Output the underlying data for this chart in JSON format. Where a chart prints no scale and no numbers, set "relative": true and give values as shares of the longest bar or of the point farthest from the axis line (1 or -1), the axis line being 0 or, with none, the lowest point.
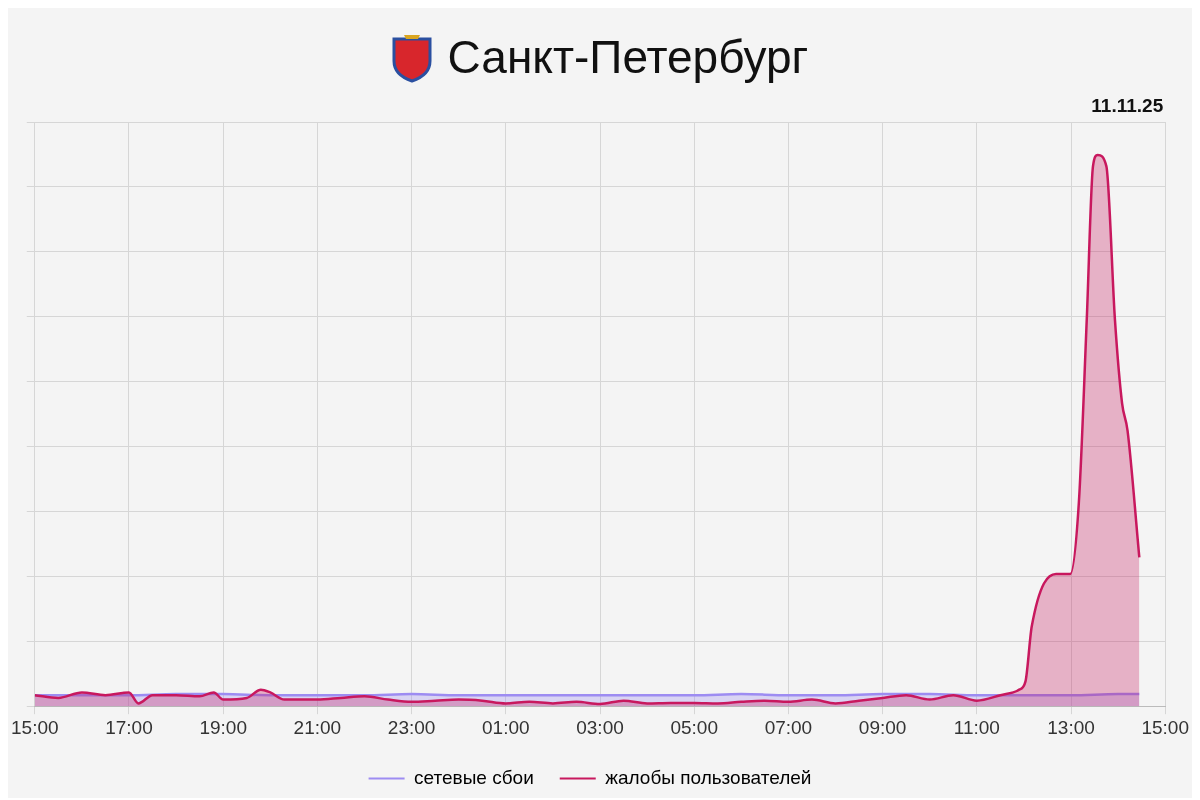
{
  "chart_data": {
    "type": "area",
    "title": "Санкт-Петербург",
    "annotations": [
      "11.11.25"
    ],
    "relative": true,
    "grid": true,
    "legend": "bottom",
    "marker": "none",
    "line_style": "solid",
    "xlim": [
      "--11-10T15:00",
      "--11-11T15:00"
    ],
    "xticks": [
      {
        "value": "--11-10T15:00",
        "label": "15:00"
      },
      {
        "value": "--11-10T17:00",
        "label": "17:00"
      },
      {
        "value": "--11-10T19:00",
        "label": "19:00"
      },
      {
        "value": "--11-10T21:00",
        "label": "21:00"
      },
      {
        "value": "--11-10T23:00",
        "label": "23:00"
      },
      {
        "value": "--11-11T01:00",
        "label": "01:00"
      },
      {
        "value": "--11-11T03:00",
        "label": "03:00"
      },
      {
        "value": "--11-11T05:00",
        "label": "05:00"
      },
      {
        "value": "--11-11T07:00",
        "label": "07:00"
      },
      {
        "value": "--11-11T09:00",
        "label": "09:00"
      },
      {
        "value": "--11-11T11:00",
        "label": "11:00"
      },
      {
        "value": "--11-11T13:00",
        "label": "13:00"
      },
      {
        "value": "--11-11T15:00",
        "label": "15:00"
      }
    ],
    "series": [
      {
        "name": "сетевые сбои",
        "color": "#9d8cf2",
        "x": [
          "--11-10T15:00",
          "--11-10T16:00",
          "--11-10T17:00",
          "--11-10T18:00",
          "--11-10T19:00",
          "--11-10T20:00",
          "--11-10T21:00",
          "--11-10T22:00",
          "--11-10T23:00",
          "--11-11T00:00",
          "--11-11T01:00",
          "--11-11T02:00",
          "--11-11T03:00",
          "--11-11T04:00",
          "--11-11T05:00",
          "--11-11T06:00",
          "--11-11T07:00",
          "--11-11T08:00",
          "--11-11T09:00",
          "--11-11T10:00",
          "--11-11T11:00",
          "--11-11T12:00",
          "--11-11T13:00",
          "--11-11T14:00",
          "--11-11T14:27"
        ],
        "values": [
          0.02,
          0.02,
          0.02,
          0.022,
          0.022,
          0.02,
          0.02,
          0.02,
          0.022,
          0.02,
          0.02,
          0.02,
          0.02,
          0.02,
          0.02,
          0.022,
          0.02,
          0.02,
          0.022,
          0.022,
          0.02,
          0.02,
          0.02,
          0.022,
          0.022
        ]
      },
      {
        "name": "жалобы пользователей",
        "color": "#c8185e",
        "x": [
          "--11-10T15:00",
          "--11-10T15:30",
          "--11-10T16:00",
          "--11-10T16:30",
          "--11-10T17:00",
          "--11-10T17:12",
          "--11-10T17:30",
          "--11-10T18:00",
          "--11-10T18:30",
          "--11-10T18:48",
          "--11-10T19:00",
          "--11-10T19:30",
          "--11-10T19:48",
          "--11-10T20:00",
          "--11-10T20:18",
          "--11-10T21:00",
          "--11-10T21:30",
          "--11-10T22:00",
          "--11-10T22:30",
          "--11-10T23:00",
          "--11-10T23:30",
          "--11-11T00:00",
          "--11-11T00:30",
          "--11-11T01:00",
          "--11-11T01:30",
          "--11-11T02:00",
          "--11-11T02:30",
          "--11-11T03:00",
          "--11-11T03:30",
          "--11-11T04:00",
          "--11-11T04:30",
          "--11-11T05:00",
          "--11-11T05:30",
          "--11-11T06:00",
          "--11-11T06:30",
          "--11-11T07:00",
          "--11-11T07:30",
          "--11-11T08:00",
          "--11-11T08:30",
          "--11-11T09:00",
          "--11-11T09:30",
          "--11-11T10:00",
          "--11-11T10:30",
          "--11-11T11:00",
          "--11-11T11:30",
          "--11-11T11:54",
          "--11-11T12:02",
          "--11-11T12:10",
          "--11-11T12:41",
          "--11-11T12:59",
          "--11-11T13:10",
          "--11-11T13:20",
          "--11-11T13:28",
          "--11-11T13:34",
          "--11-11T13:45",
          "--11-11T13:56",
          "--11-11T14:05",
          "--11-11T14:12",
          "--11-11T14:27"
        ],
        "values": [
          0.02,
          0.015,
          0.025,
          0.02,
          0.025,
          0.005,
          0.02,
          0.02,
          0.018,
          0.025,
          0.012,
          0.015,
          0.03,
          0.025,
          0.012,
          0.012,
          0.015,
          0.018,
          0.012,
          0.008,
          0.01,
          0.012,
          0.01,
          0.005,
          0.008,
          0.005,
          0.008,
          0.004,
          0.01,
          0.005,
          0.006,
          0.006,
          0.005,
          0.008,
          0.01,
          0.008,
          0.012,
          0.005,
          0.01,
          0.015,
          0.02,
          0.012,
          0.02,
          0.01,
          0.02,
          0.03,
          0.045,
          0.145,
          0.24,
          0.24,
          0.37,
          0.7,
          0.98,
          1.0,
          0.98,
          0.7,
          0.55,
          0.5,
          0.27
        ]
      }
    ]
  }
}
